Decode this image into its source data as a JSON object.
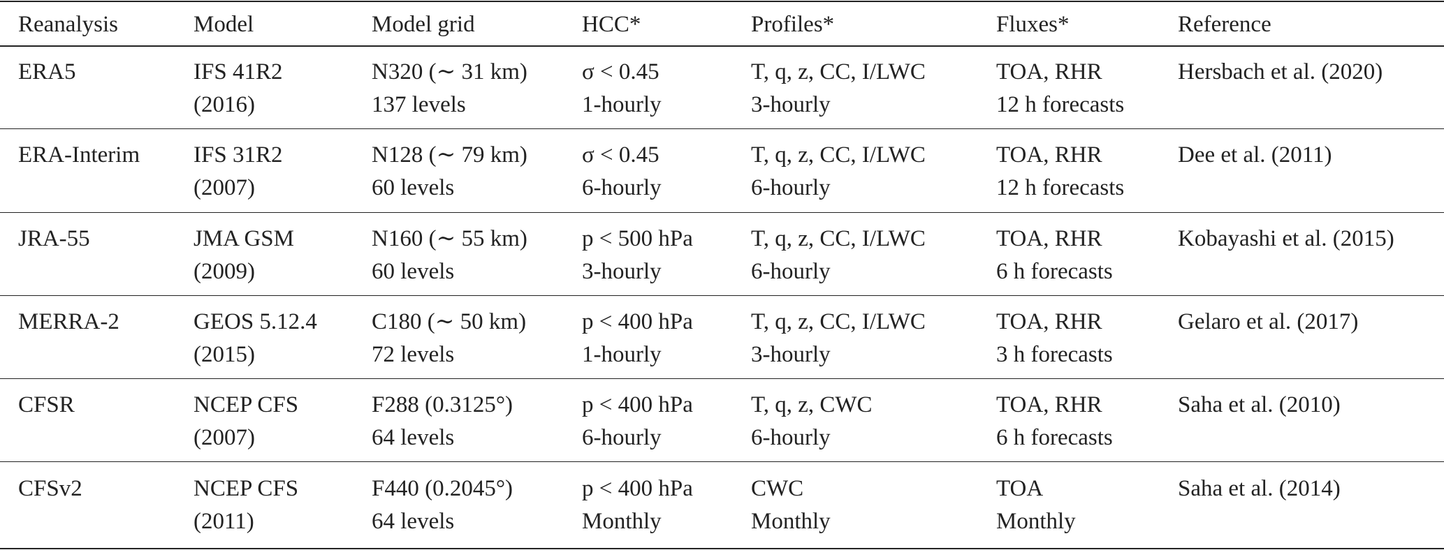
{
  "table": {
    "header": [
      "Reanalysis",
      "Model",
      "Model grid",
      "HCC*",
      "Profiles*",
      "Fluxes*",
      "Reference"
    ],
    "rows": [
      [
        [
          "ERA5"
        ],
        [
          "IFS 41R2",
          "(2016)"
        ],
        [
          "N320 (∼ 31 km)",
          "137 levels"
        ],
        [
          "σ < 0.45",
          "1-hourly"
        ],
        [
          "T, q, z, CC, I/LWC",
          "3-hourly"
        ],
        [
          "TOA, RHR",
          "12 h forecasts"
        ],
        [
          "Hersbach et al. (2020)"
        ]
      ],
      [
        [
          "ERA-Interim"
        ],
        [
          "IFS 31R2",
          "(2007)"
        ],
        [
          "N128 (∼ 79 km)",
          "60 levels"
        ],
        [
          "σ < 0.45",
          "6-hourly"
        ],
        [
          "T, q, z, CC, I/LWC",
          "6-hourly"
        ],
        [
          "TOA, RHR",
          "12 h forecasts"
        ],
        [
          "Dee et al. (2011)"
        ]
      ],
      [
        [
          "JRA-55"
        ],
        [
          "JMA GSM",
          "(2009)"
        ],
        [
          "N160 (∼ 55 km)",
          "60 levels"
        ],
        [
          "p < 500 hPa",
          "3-hourly"
        ],
        [
          "T, q, z, CC, I/LWC",
          "6-hourly"
        ],
        [
          "TOA, RHR",
          "6 h forecasts"
        ],
        [
          "Kobayashi et al. (2015)"
        ]
      ],
      [
        [
          "MERRA-2"
        ],
        [
          "GEOS 5.12.4",
          "(2015)"
        ],
        [
          "C180 (∼ 50 km)",
          "72 levels"
        ],
        [
          "p < 400 hPa",
          "1-hourly"
        ],
        [
          "T, q, z, CC, I/LWC",
          "3-hourly"
        ],
        [
          "TOA, RHR",
          "3 h forecasts"
        ],
        [
          "Gelaro et al. (2017)"
        ]
      ],
      [
        [
          "CFSR"
        ],
        [
          "NCEP CFS",
          "(2007)"
        ],
        [
          "F288 (0.3125°)",
          "64 levels"
        ],
        [
          "p < 400 hPa",
          "6-hourly"
        ],
        [
          "T, q, z, CWC",
          "6-hourly"
        ],
        [
          "TOA, RHR",
          "6 h forecasts"
        ],
        [
          "Saha et al. (2010)"
        ]
      ],
      [
        [
          "CFSv2"
        ],
        [
          "NCEP CFS",
          "(2011)"
        ],
        [
          "F440 (0.2045°)",
          "64 levels"
        ],
        [
          "p < 400 hPa",
          "Monthly"
        ],
        [
          "CWC",
          "Monthly"
        ],
        [
          "TOA",
          "Monthly"
        ],
        [
          "Saha et al. (2014)"
        ]
      ]
    ]
  }
}
